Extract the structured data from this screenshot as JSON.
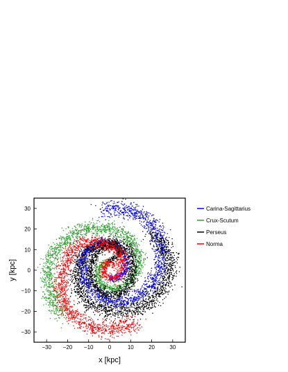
{
  "chart_data": {
    "type": "scatter",
    "title": "",
    "xlabel": "x [kpc]",
    "ylabel": "y [kpc]",
    "xlim": [
      -36,
      36
    ],
    "ylim": [
      -35,
      35
    ],
    "xticks": [
      "-30",
      "-20",
      "-10",
      "0",
      "10",
      "20",
      "30"
    ],
    "yticks": [
      "-30",
      "-20",
      "-10",
      "0",
      "10",
      "20",
      "30"
    ],
    "grid": false,
    "legend_position": "right",
    "series": [
      {
        "name": "Carina-Sagittarius",
        "color": "#0000ff",
        "points": [
          [
            0,
            -4
          ],
          [
            3,
            -4
          ],
          [
            6,
            -2
          ],
          [
            8,
            1
          ],
          [
            8,
            5
          ],
          [
            7,
            8
          ],
          [
            4,
            11
          ],
          [
            0,
            13
          ],
          [
            -4,
            13
          ],
          [
            -8,
            12
          ],
          [
            -11,
            9
          ],
          [
            -13,
            5
          ],
          [
            -13,
            0
          ],
          [
            -12,
            -5
          ],
          [
            -9,
            -10
          ],
          [
            -5,
            -13
          ],
          [
            0,
            -15
          ],
          [
            5,
            -16
          ],
          [
            10,
            -15
          ],
          [
            15,
            -12
          ],
          [
            19,
            -8
          ],
          [
            22,
            -4
          ],
          [
            24,
            1
          ],
          [
            25,
            6
          ],
          [
            25,
            11
          ],
          [
            23,
            16
          ],
          [
            21,
            21
          ],
          [
            17,
            25
          ],
          [
            12,
            28
          ],
          [
            7,
            29.5
          ],
          [
            2,
            30
          ],
          [
            -3,
            29
          ]
        ]
      },
      {
        "name": "Crux-Scutum",
        "color": "#2ca02c",
        "points": [
          [
            0,
            4
          ],
          [
            -3,
            3
          ],
          [
            -5,
            1
          ],
          [
            -6,
            -2
          ],
          [
            -5,
            -5
          ],
          [
            -3,
            -8
          ],
          [
            0,
            -9
          ],
          [
            4,
            -9
          ],
          [
            8,
            -7
          ],
          [
            11,
            -4
          ],
          [
            13,
            0
          ],
          [
            14,
            4
          ],
          [
            13,
            9
          ],
          [
            11,
            13
          ],
          [
            8,
            16
          ],
          [
            4,
            19
          ],
          [
            0,
            20
          ],
          [
            -5,
            21
          ],
          [
            -10,
            20
          ],
          [
            -15,
            19
          ],
          [
            -19,
            16
          ],
          [
            -23,
            13
          ],
          [
            -26,
            9
          ],
          [
            -28,
            4
          ],
          [
            -29,
            -1
          ],
          [
            -29,
            -6
          ],
          [
            -28,
            -11
          ],
          [
            -27,
            -15
          ],
          [
            -25,
            -19
          ],
          [
            -22,
            -22
          ]
        ]
      },
      {
        "name": "Perseus",
        "color": "#000000",
        "points": [
          [
            0,
            5
          ],
          [
            3,
            6
          ],
          [
            5,
            9
          ],
          [
            4,
            11
          ],
          [
            1,
            12
          ],
          [
            -3,
            11
          ],
          [
            -6,
            9
          ],
          [
            -8,
            5
          ],
          [
            -9,
            1
          ],
          [
            -9,
            -3
          ],
          [
            -8,
            -7
          ],
          [
            -5,
            -10
          ],
          [
            -1,
            -12
          ],
          [
            3,
            -12
          ],
          [
            7,
            -10
          ],
          [
            10,
            -6
          ],
          [
            11,
            -2
          ],
          [
            11,
            3
          ],
          [
            10,
            7
          ],
          [
            7,
            11
          ],
          [
            3,
            13
          ],
          [
            -2,
            14
          ],
          [
            -6,
            12
          ],
          [
            -10,
            10
          ],
          [
            -13,
            7
          ],
          [
            -15,
            2
          ],
          [
            -16,
            -3
          ],
          [
            -15,
            -8
          ],
          [
            -13,
            -13
          ],
          [
            -10,
            -16
          ],
          [
            -5,
            -18
          ],
          [
            0,
            -20
          ],
          [
            5,
            -20
          ],
          [
            10,
            -20
          ],
          [
            15,
            -18
          ],
          [
            20,
            -15
          ],
          [
            24,
            -10
          ],
          [
            27,
            -5
          ],
          [
            29,
            0
          ],
          [
            29,
            5
          ],
          [
            27,
            10
          ],
          [
            24,
            14
          ],
          [
            20,
            17
          ]
        ]
      },
      {
        "name": "Norma",
        "color": "#ff0000",
        "points": [
          [
            2,
            3
          ],
          [
            0,
            4
          ],
          [
            -2,
            3
          ],
          [
            -3,
            1
          ],
          [
            -3,
            -1
          ],
          [
            -2,
            -3
          ],
          [
            0,
            -4
          ],
          [
            2,
            -4
          ],
          [
            4,
            -3
          ],
          [
            6,
            0
          ],
          [
            6,
            4
          ],
          [
            5,
            8
          ],
          [
            2,
            11
          ],
          [
            -2,
            13
          ],
          [
            -6,
            14
          ],
          [
            -11,
            14
          ],
          [
            -15,
            12
          ],
          [
            -18,
            9
          ],
          [
            -20,
            5
          ],
          [
            -22,
            1
          ],
          [
            -23,
            -4
          ],
          [
            -23,
            -9
          ],
          [
            -22,
            -14
          ],
          [
            -20,
            -19
          ],
          [
            -17,
            -23
          ],
          [
            -12,
            -26
          ],
          [
            -7,
            -28
          ],
          [
            -2,
            -29
          ],
          [
            4,
            -28
          ],
          [
            9,
            -27
          ],
          [
            13,
            -26
          ]
        ]
      }
    ]
  }
}
